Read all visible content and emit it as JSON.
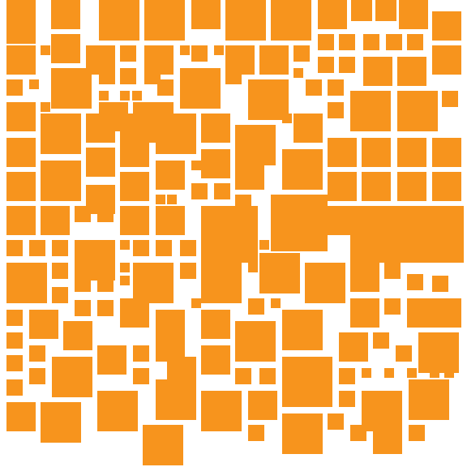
{
  "pattern": {
    "background_color": "#ffffff",
    "tile_color": "#f7941d",
    "description_icon": "orange-square-tile-mosaic"
  }
}
